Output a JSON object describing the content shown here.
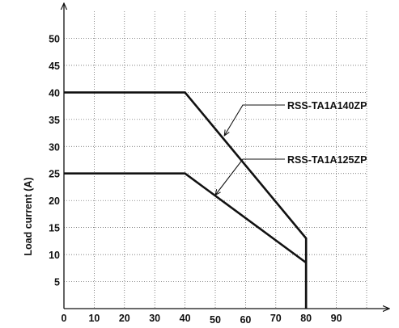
{
  "chart_data": {
    "type": "line",
    "title": "",
    "xlabel": "",
    "ylabel": "Load current (A)",
    "xlim": [
      0,
      100
    ],
    "ylim": [
      0,
      55
    ],
    "grid": true,
    "x_ticks": [
      "0",
      "10",
      "20",
      "30",
      "40",
      "50",
      "60",
      "70",
      "80",
      "90"
    ],
    "y_ticks": [
      "5",
      "10",
      "15",
      "20",
      "25",
      "30",
      "35",
      "40",
      "45",
      "50"
    ],
    "series": [
      {
        "name": "RSS-TA1A140ZP",
        "x": [
          0,
          40,
          80,
          80
        ],
        "y": [
          40,
          40,
          13,
          0
        ]
      },
      {
        "name": "RSS-TA1A125ZP",
        "x": [
          0,
          40,
          80,
          80
        ],
        "y": [
          25,
          25,
          8.5,
          0
        ]
      }
    ],
    "annotations": [
      {
        "text": "RSS-TA1A140ZP",
        "points_to": [
          53,
          32
        ]
      },
      {
        "text": "RSS-TA1A125ZP",
        "points_to": [
          50,
          21
        ]
      }
    ]
  }
}
